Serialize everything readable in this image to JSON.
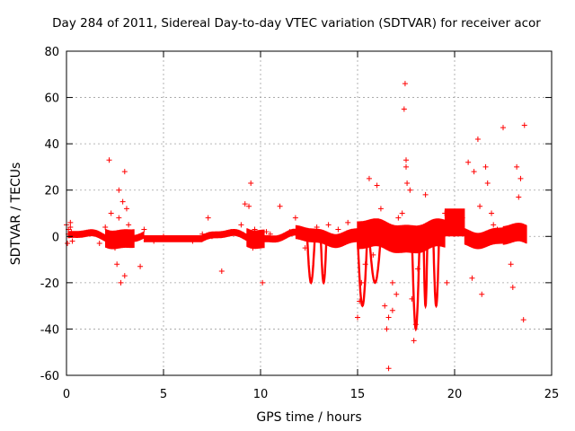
{
  "chart_data": {
    "type": "scatter",
    "title": "Day 284 of 2011, Sidereal Day-to-day VTEC variation (SDTVAR) for receiver acor",
    "xlabel": "GPS time / hours",
    "ylabel": "SDTVAR / TECUs",
    "xlim": [
      0,
      25
    ],
    "ylim": [
      -60,
      80
    ],
    "xticks": [
      0,
      5,
      10,
      15,
      20,
      25
    ],
    "xtick_labels": [
      "0",
      "5",
      "10",
      "15",
      "20",
      "25"
    ],
    "yticks": [
      -60,
      -40,
      -20,
      0,
      20,
      40,
      60,
      80
    ],
    "ytick_labels": [
      "-60",
      "-40",
      "-20",
      "0",
      "20",
      "40",
      "60",
      "80"
    ],
    "grid": true,
    "marker": "+",
    "color": "#ff0000",
    "series": [
      {
        "name": "SDTVAR",
        "x": [
          0.0,
          0.1,
          0.2,
          0.3,
          0.1,
          0.2,
          0.05,
          0.25,
          1.7,
          2.0,
          2.2,
          2.3,
          2.5,
          2.7,
          2.8,
          3.0,
          3.1,
          2.6,
          2.7,
          3.0,
          2.9,
          3.2,
          3.8,
          4.0,
          4.5,
          5.0,
          5.5,
          6.0,
          6.5,
          7.0,
          7.3,
          7.5,
          8.0,
          8.5,
          9.0,
          9.2,
          9.5,
          9.7,
          10.1,
          9.4,
          9.6,
          10.3,
          10.5,
          11.0,
          11.5,
          11.8,
          12.0,
          12.3,
          12.6,
          12.9,
          13.2,
          13.5,
          14.0,
          14.5,
          15.0,
          15.1,
          15.2,
          15.4,
          15.6,
          15.8,
          16.0,
          16.2,
          16.4,
          16.5,
          16.6,
          16.8,
          17.0,
          17.3,
          17.5,
          17.7,
          17.4,
          17.45,
          17.5,
          17.55,
          16.6,
          17.9,
          18.0,
          18.2,
          18.5,
          18.8,
          19.0,
          19.3,
          19.5,
          19.8,
          20.0,
          20.2,
          20.4,
          20.7,
          21.0,
          21.2,
          21.4,
          21.6,
          21.7,
          21.9,
          22.0,
          22.2,
          22.5,
          22.9,
          23.2,
          23.4,
          23.5,
          23.6,
          16.8,
          17.1,
          17.8,
          18.1,
          19.6,
          20.9,
          21.3,
          23.0,
          23.3,
          23.55
        ],
        "y": [
          5,
          3,
          6,
          -2,
          1,
          4,
          -3,
          2,
          -3,
          4,
          33,
          10,
          -5,
          20,
          -20,
          28,
          12,
          -12,
          8,
          -17,
          15,
          5,
          -13,
          3,
          -2,
          0,
          -1,
          -1,
          -2,
          1,
          8,
          0,
          -15,
          2,
          5,
          14,
          23,
          3,
          -20,
          13,
          -5,
          2,
          1,
          13,
          2,
          8,
          3,
          -5,
          2,
          4,
          -2,
          5,
          3,
          6,
          -35,
          -28,
          -20,
          -12,
          25,
          -8,
          22,
          12,
          -30,
          -40,
          -57,
          -20,
          -25,
          10,
          30,
          20,
          55,
          66,
          33,
          23,
          -35,
          -45,
          -38,
          2,
          18,
          0,
          3,
          6,
          10,
          4,
          1,
          2,
          8,
          32,
          28,
          42,
          -25,
          30,
          23,
          10,
          5,
          3,
          47,
          -12,
          30,
          25,
          2,
          48,
          -32,
          8,
          -27,
          -14,
          -20,
          -18,
          13,
          -22,
          17,
          -36
        ]
      }
    ]
  }
}
